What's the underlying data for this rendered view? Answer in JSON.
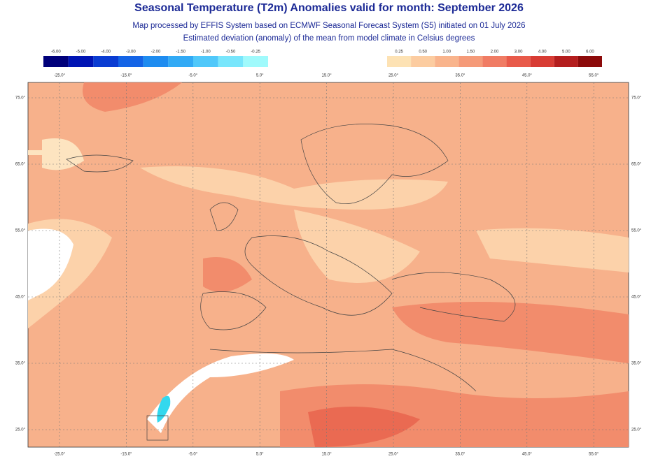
{
  "header": {
    "title": "Seasonal Temperature (T2m) Anomalies valid for month: September 2026",
    "subtitle_lines": [
      "Map processed by EFFIS System based on ECMWF Seasonal Forecast System (S5) initiated on 01 July 2026",
      "Estimated deviation (anomaly) of the mean from model climate in Celsius degrees"
    ]
  },
  "legend_negative": {
    "labels": [
      "-6.00",
      "-5.00",
      "-4.00",
      "-3.00",
      "-2.00",
      "-1.50",
      "-1.00",
      "-0.50",
      "-0.25"
    ],
    "colors": [
      "#00007a",
      "#0014b4",
      "#0a3cd2",
      "#1464e6",
      "#1e8cf0",
      "#32aaf5",
      "#50c8fa",
      "#78e6fc",
      "#a0fafc"
    ]
  },
  "legend_positive": {
    "labels": [
      "0.25",
      "0.50",
      "1.00",
      "1.50",
      "2.00",
      "3.00",
      "4.00",
      "5.00",
      "6.00"
    ],
    "colors": [
      "#fde2b4",
      "#fccca0",
      "#f9b48c",
      "#f59a78",
      "#f07c64",
      "#e85a4a",
      "#d83c34",
      "#b41e1e",
      "#8c0a0a"
    ]
  },
  "lon_labels": [
    "-25.0°",
    "-15.0°",
    "-5.0°",
    "5.0°",
    "15.0°",
    "25.0°",
    "35.0°",
    "45.0°",
    "55.0°"
  ],
  "lat_labels": [
    "75.0°",
    "65.0°",
    "55.0°",
    "45.0°",
    "35.0°",
    "25.0°"
  ]
}
